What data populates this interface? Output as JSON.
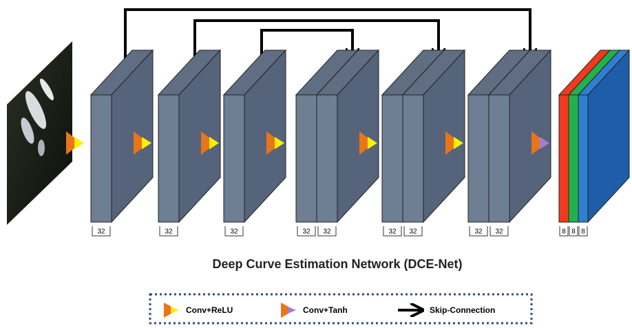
{
  "blocks": [
    {
      "channels": [
        32
      ]
    },
    {
      "channels": [
        32
      ]
    },
    {
      "channels": [
        32
      ]
    },
    {
      "channels": [
        32,
        32
      ]
    },
    {
      "channels": [
        32,
        32
      ]
    },
    {
      "channels": [
        32,
        32
      ]
    }
  ],
  "output": {
    "channels": [
      8,
      8,
      8
    ]
  },
  "title": "Deep Curve Estimation  Network (DCE-Net)",
  "legend": [
    {
      "label": "Conv+ReLU"
    },
    {
      "label": "Conv+Tanh"
    },
    {
      "label": "Skip-Connection"
    }
  ]
}
